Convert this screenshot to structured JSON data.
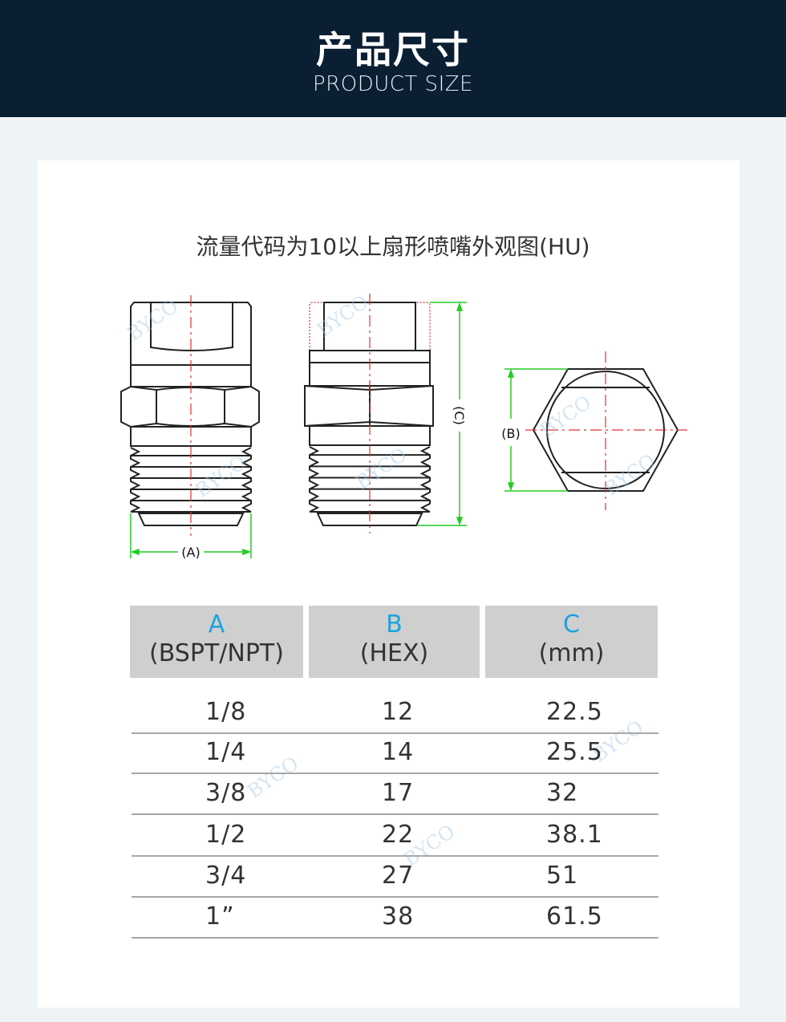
{
  "header": {
    "title": "产品尺寸",
    "subtitle": "PRODUCT SIZE"
  },
  "diagram": {
    "title": "流量代码为10以上扇形喷嘴外观图(HU)",
    "labels": {
      "a": "(A)",
      "b": "(B)",
      "c": "(C)"
    },
    "watermark": "BYCO"
  },
  "table": {
    "headers": [
      {
        "key": "A",
        "unit": "(BSPT/NPT)"
      },
      {
        "key": "B",
        "unit": "(HEX)"
      },
      {
        "key": "C",
        "unit": "(mm)"
      }
    ],
    "rows": [
      [
        "1/8",
        "12",
        "22.5"
      ],
      [
        "1/4",
        "14",
        "25.5"
      ],
      [
        "3/8",
        "17",
        "32"
      ],
      [
        "1/2",
        "22",
        "38.1"
      ],
      [
        "3/4",
        "27",
        "51"
      ],
      [
        "1”",
        "38",
        "61.5"
      ]
    ]
  },
  "colors": {
    "header_bg": "#0b1f33",
    "accent": "#1aa3e0",
    "dimension": "#22cc22",
    "centerline": "#e03030"
  }
}
